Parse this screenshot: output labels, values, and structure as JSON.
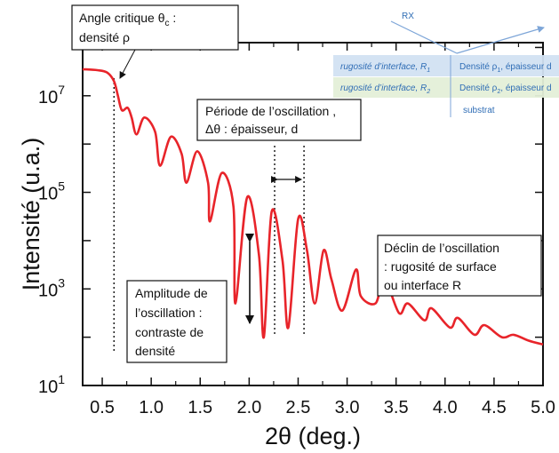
{
  "chart_data": {
    "type": "line",
    "xlabel": "2θ (deg.)",
    "ylabel": "Intensité (u.a.)",
    "xlim": [
      0.3,
      5.0
    ],
    "ylim_log10": [
      1,
      8.1
    ],
    "y_scale": "log",
    "x_ticks": [
      "0.5",
      "1.0",
      "1.5",
      "2.0",
      "2.5",
      "3.0",
      "3.5",
      "4.0",
      "4.5",
      "5.0"
    ],
    "y_ticks": [
      {
        "base": "10",
        "exp": "1"
      },
      {
        "base": "10",
        "exp": "3"
      },
      {
        "base": "10",
        "exp": "5"
      },
      {
        "base": "10",
        "exp": "7"
      }
    ],
    "series_color": "#e8242a",
    "series": [
      {
        "x": [
          0.3,
          0.45,
          0.55,
          0.62,
          0.66,
          0.7,
          0.76,
          0.8,
          0.85,
          0.93,
          1.04,
          1.09,
          1.2,
          1.31,
          1.36,
          1.47,
          1.58,
          1.6,
          1.72,
          1.84,
          1.86,
          1.98,
          2.1,
          2.15,
          2.23,
          2.34,
          2.4,
          2.5,
          2.59,
          2.67,
          2.76,
          2.84,
          2.95,
          3.09,
          3.14,
          3.29,
          3.38,
          3.53,
          3.62,
          3.79,
          3.86,
          4.05,
          4.13,
          4.3,
          4.4,
          4.58,
          4.7,
          4.85,
          5.0
        ],
        "log10y": [
          7.55,
          7.53,
          7.48,
          7.3,
          7.0,
          6.7,
          6.75,
          6.55,
          6.2,
          6.55,
          6.25,
          5.55,
          6.15,
          5.8,
          5.2,
          5.85,
          5.2,
          4.4,
          5.4,
          4.7,
          2.7,
          4.9,
          3.7,
          2.0,
          4.6,
          3.6,
          2.2,
          4.45,
          3.8,
          2.7,
          3.8,
          3.2,
          2.55,
          3.4,
          2.85,
          2.7,
          3.2,
          2.5,
          2.7,
          2.35,
          2.6,
          2.2,
          2.4,
          2.05,
          2.25,
          2.0,
          2.05,
          1.93,
          1.85
        ]
      }
    ],
    "reference_lines": [
      {
        "type": "vertical-dotted",
        "x": 0.62
      },
      {
        "type": "vertical-dotted",
        "x": 2.26
      },
      {
        "type": "vertical-dotted",
        "x": 2.56
      }
    ]
  },
  "annotations": {
    "critical_angle": {
      "line1_pre": "Angle critique θ",
      "line1_sub": "c",
      "line1_post": " :",
      "line2": "densité ρ"
    },
    "period": {
      "line1": "Période de l’oscillation ,",
      "line2": "Δθ : épaisseur, d"
    },
    "decline": {
      "line1": "Déclin de l’oscillation",
      "line2": ": rugosité de surface",
      "line3": "ou interface R"
    },
    "amplitude": {
      "line1": "Amplitude de",
      "line2": "l’oscillation :",
      "line3": "contraste de",
      "line4": "densité"
    }
  },
  "inset": {
    "rx_label": "RX",
    "layer1_left": "rugosité d’interface, R",
    "layer1_left_sub": "1",
    "layer1_right": "Densité ρ",
    "layer1_right_sub": "1",
    "layer1_right_tail": ", épaisseur d",
    "layer2_left": "rugosité d’interface, R",
    "layer2_left_sub": "2",
    "layer2_right": "Densité ρ",
    "layer2_right_sub": "2",
    "layer2_right_tail": ", épaisseur d",
    "substrate": "substrat",
    "colors": {
      "layer1": "#d2e2f2",
      "layer2": "#e4efd8",
      "text": "#2f6db5",
      "beam": "#7ea6d8"
    }
  }
}
